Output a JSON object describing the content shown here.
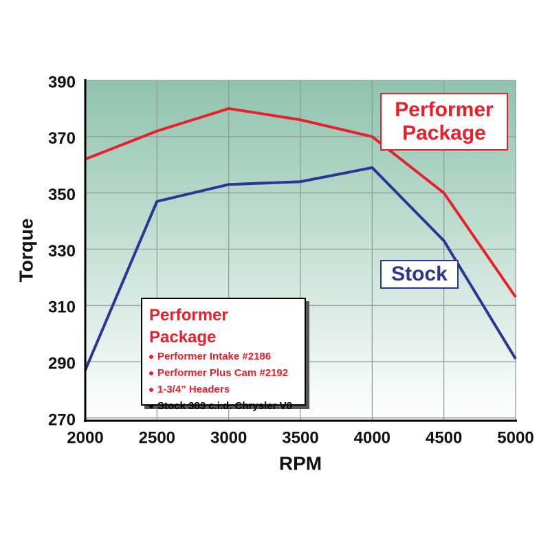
{
  "chart_data": {
    "type": "line",
    "x_label": "RPM",
    "y_label": "Torque",
    "x": [
      2000,
      2500,
      3000,
      3500,
      4000,
      4500,
      5000
    ],
    "xlim": [
      2000,
      5000
    ],
    "xticks": [
      2000,
      2500,
      3000,
      3500,
      4000,
      4500,
      5000
    ],
    "ylim": [
      269,
      390
    ],
    "yticks": [
      270,
      290,
      310,
      330,
      350,
      370,
      390
    ],
    "grid": true,
    "series": [
      {
        "name": "Performer Package",
        "color": "#e8202a",
        "values": [
          362,
          372,
          380,
          376,
          370,
          350,
          313
        ]
      },
      {
        "name": "Stock",
        "color": "#2b3595",
        "values": [
          287,
          347,
          353,
          354,
          359,
          333,
          291
        ]
      }
    ],
    "info_box": {
      "items": [
        {
          "text": "Performer Intake #2186",
          "color": "#e8202a"
        },
        {
          "text": "Performer Plus Cam #2192",
          "color": "#e8202a"
        },
        {
          "text": "1-3/4” Headers",
          "color": "#e8202a"
        },
        {
          "text": "Stock 383 c.i.d. Chrysler V8",
          "color": "#000000"
        }
      ]
    }
  }
}
